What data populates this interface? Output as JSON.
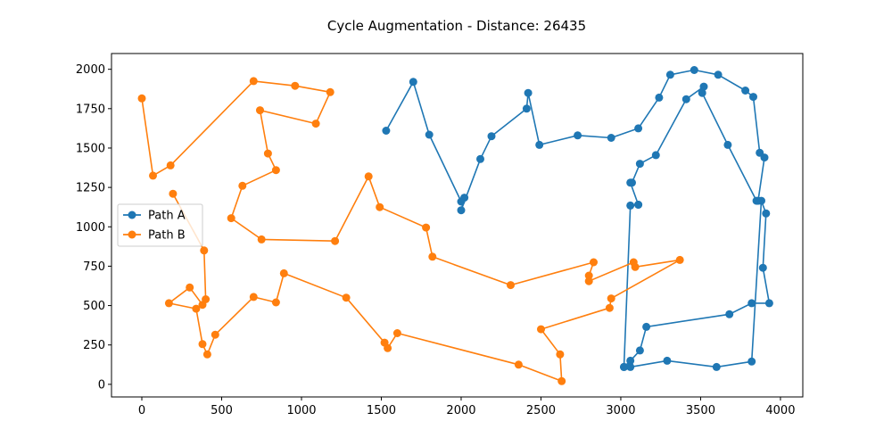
{
  "chart_data": {
    "type": "line",
    "title": "Cycle Augmentation - Distance: 26435",
    "xlabel": "",
    "ylabel": "",
    "xlim": [
      -190,
      4140
    ],
    "ylim": [
      -80,
      2100
    ],
    "xticks": [
      0,
      500,
      1000,
      1500,
      2000,
      2500,
      3000,
      3500,
      4000
    ],
    "yticks": [
      0,
      250,
      500,
      750,
      1000,
      1250,
      1500,
      1750,
      2000
    ],
    "grid": false,
    "legend_position": "center-left",
    "series": [
      {
        "name": "Path A",
        "color": "#1f77b4",
        "x": [
          1530,
          1700,
          1800,
          2000,
          2020,
          2000,
          2120,
          2190,
          2410,
          2420,
          2490,
          2730,
          2940,
          3110,
          3240,
          3310,
          3460,
          3610,
          3780,
          3830,
          3870,
          3900,
          3860,
          3850,
          3670,
          3510,
          3520,
          3410,
          3220,
          3120,
          3070,
          3060,
          3110,
          3110,
          3060,
          3020,
          3060,
          3120,
          3160,
          3680,
          3820,
          3930,
          3890,
          3910,
          3880,
          3820,
          3600,
          3290,
          3060,
          3020
        ],
        "y": [
          1610,
          1920,
          1585,
          1160,
          1185,
          1105,
          1430,
          1575,
          1750,
          1850,
          1520,
          1580,
          1565,
          1625,
          1820,
          1965,
          1995,
          1965,
          1865,
          1825,
          1470,
          1440,
          1165,
          1165,
          1520,
          1850,
          1890,
          1810,
          1455,
          1400,
          1280,
          1280,
          1140,
          1140,
          1135,
          110,
          150,
          215,
          365,
          445,
          515,
          515,
          740,
          1085,
          1165,
          145,
          110,
          150,
          110,
          110
        ]
      },
      {
        "name": "Path B",
        "color": "#ff7f0e",
        "x": [
          0,
          70,
          180,
          700,
          960,
          1180,
          1090,
          740,
          790,
          840,
          630,
          560,
          750,
          1210,
          1420,
          1490,
          1780,
          1820,
          2310,
          2830,
          2800,
          2800,
          3080,
          3090,
          3370,
          2940,
          2930,
          2500,
          2620,
          2630,
          2360,
          1600,
          1540,
          1520,
          1280,
          890,
          840,
          700,
          460,
          410,
          380,
          340,
          170,
          300,
          380,
          400,
          390,
          195
        ],
        "y": [
          1815,
          1325,
          1390,
          1925,
          1895,
          1855,
          1655,
          1740,
          1465,
          1360,
          1260,
          1055,
          920,
          910,
          1320,
          1125,
          995,
          810,
          630,
          775,
          690,
          655,
          775,
          745,
          790,
          545,
          485,
          350,
          190,
          20,
          125,
          325,
          230,
          265,
          550,
          705,
          520,
          555,
          315,
          190,
          255,
          480,
          515,
          615,
          505,
          540,
          850,
          1210
        ]
      }
    ]
  }
}
